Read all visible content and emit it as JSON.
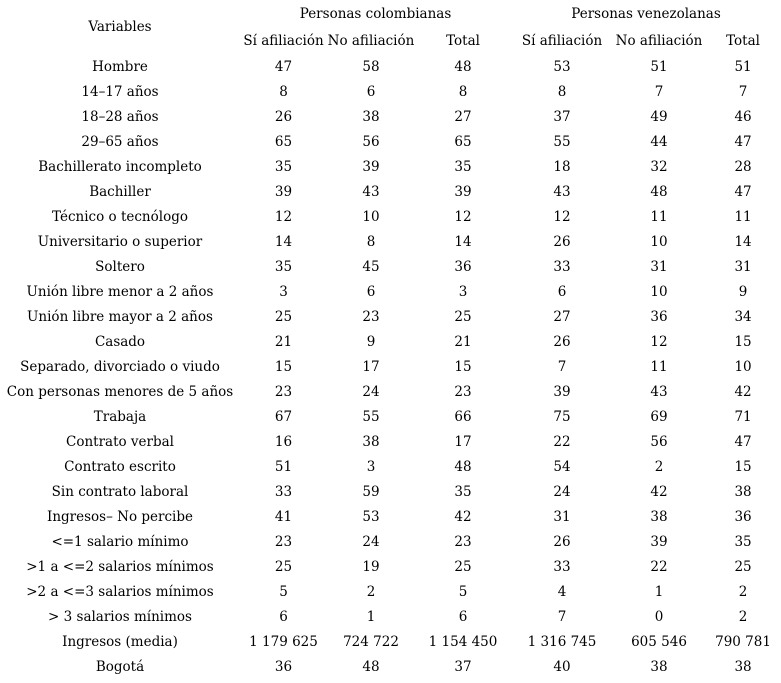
{
  "table": {
    "variables_header": "Variables",
    "groups": [
      {
        "label": "Personas colombianas",
        "subheaders": [
          "Sí afiliación",
          "No afiliación",
          "Total"
        ]
      },
      {
        "label": "Personas venezolanas",
        "subheaders": [
          "Sí afiliación",
          "No afiliación",
          "Total"
        ]
      }
    ],
    "rows": [
      {
        "variable": "Hombre",
        "values": [
          "47",
          "58",
          "48",
          "53",
          "51",
          "51"
        ]
      },
      {
        "variable": "14–17 años",
        "values": [
          "8",
          "6",
          "8",
          "8",
          "7",
          "7"
        ]
      },
      {
        "variable": "18–28 años",
        "values": [
          "26",
          "38",
          "27",
          "37",
          "49",
          "46"
        ]
      },
      {
        "variable": "29–65 años",
        "values": [
          "65",
          "56",
          "65",
          "55",
          "44",
          "47"
        ]
      },
      {
        "variable": "Bachillerato incompleto",
        "values": [
          "35",
          "39",
          "35",
          "18",
          "32",
          "28"
        ]
      },
      {
        "variable": "Bachiller",
        "values": [
          "39",
          "43",
          "39",
          "43",
          "48",
          "47"
        ]
      },
      {
        "variable": "Técnico o tecnólogo",
        "values": [
          "12",
          "10",
          "12",
          "12",
          "11",
          "11"
        ]
      },
      {
        "variable": "Universitario o superior",
        "values": [
          "14",
          "8",
          "14",
          "26",
          "10",
          "14"
        ]
      },
      {
        "variable": "Soltero",
        "values": [
          "35",
          "45",
          "36",
          "33",
          "31",
          "31"
        ]
      },
      {
        "variable": "Unión libre menor a 2 años",
        "values": [
          "3",
          "6",
          "3",
          "6",
          "10",
          "9"
        ]
      },
      {
        "variable": "Unión libre mayor a 2 años",
        "values": [
          "25",
          "23",
          "25",
          "27",
          "36",
          "34"
        ]
      },
      {
        "variable": "Casado",
        "values": [
          "21",
          "9",
          "21",
          "26",
          "12",
          "15"
        ]
      },
      {
        "variable": "Separado, divorciado o viudo",
        "values": [
          "15",
          "17",
          "15",
          "7",
          "11",
          "10"
        ]
      },
      {
        "variable": "Con personas menores de 5 años",
        "values": [
          "23",
          "24",
          "23",
          "39",
          "43",
          "42"
        ]
      },
      {
        "variable": "Trabaja",
        "values": [
          "67",
          "55",
          "66",
          "75",
          "69",
          "71"
        ]
      },
      {
        "variable": "Contrato verbal",
        "values": [
          "16",
          "38",
          "17",
          "22",
          "56",
          "47"
        ]
      },
      {
        "variable": "Contrato escrito",
        "values": [
          "51",
          "3",
          "48",
          "54",
          "2",
          "15"
        ]
      },
      {
        "variable": "Sin contrato laboral",
        "values": [
          "33",
          "59",
          "35",
          "24",
          "42",
          "38"
        ]
      },
      {
        "variable": "Ingresos– No percibe",
        "values": [
          "41",
          "53",
          "42",
          "31",
          "38",
          "36"
        ]
      },
      {
        "variable": "<=1 salario mínimo",
        "values": [
          "23",
          "24",
          "23",
          "26",
          "39",
          "35"
        ]
      },
      {
        "variable": ">1 a <=2 salarios mínimos",
        "values": [
          "25",
          "19",
          "25",
          "33",
          "22",
          "25"
        ]
      },
      {
        "variable": ">2 a <=3 salarios mínimos",
        "values": [
          "5",
          "2",
          "5",
          "4",
          "1",
          "2"
        ]
      },
      {
        "variable": "> 3 salarios mínimos",
        "values": [
          "6",
          "1",
          "6",
          "7",
          "0",
          "2"
        ]
      },
      {
        "variable": "Ingresos (media)",
        "values": [
          "1 179 625",
          "724 722",
          "1 154 450",
          "1 316 745",
          "605 546",
          "790 781"
        ]
      },
      {
        "variable": "Bogotá",
        "values": [
          "36",
          "48",
          "37",
          "40",
          "38",
          "38"
        ]
      }
    ]
  }
}
